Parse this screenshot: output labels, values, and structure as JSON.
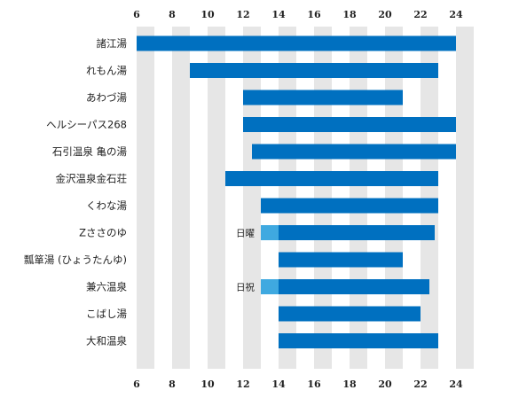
{
  "chart_data": {
    "type": "bar",
    "orientation": "horizontal-range",
    "title": "",
    "xlabel": "",
    "ylabel": "",
    "xlim": [
      6,
      24
    ],
    "xticks": [
      6,
      8,
      10,
      12,
      14,
      16,
      18,
      20,
      22,
      24
    ],
    "tick_labels": [
      "6",
      "8",
      "10",
      "12",
      "14",
      "16",
      "18",
      "20",
      "22",
      "24"
    ],
    "grid": "alternating vertical bands",
    "axis_labels_position": "top and bottom",
    "colors": {
      "main": "#0070c0",
      "extension": "#3fa9e0",
      "band": "#e6e6e6"
    },
    "categories": [
      "諸江湯",
      "れもん湯",
      "あわづ湯",
      "ヘルシーパス268",
      "石引温泉 亀の湯",
      "金沢温泉金石荘",
      "くわな湯",
      "Zささのゆ",
      "瓢箪湯 (ひょうたんゆ)",
      "兼六温泉",
      "こばし湯",
      "大和温泉"
    ],
    "series": [
      {
        "values": [
          [
            6,
            24
          ],
          [
            9,
            23
          ],
          [
            12,
            21
          ],
          [
            12,
            24
          ],
          [
            12.5,
            24
          ],
          [
            11,
            23
          ],
          [
            13,
            23
          ],
          [
            14,
            22.8
          ],
          [
            14,
            21
          ],
          [
            14,
            22.5
          ],
          [
            14,
            22
          ],
          [
            14,
            23
          ]
        ]
      }
    ],
    "extensions": [
      {
        "category": "Zささのゆ",
        "range": [
          13,
          14
        ],
        "label": "日曜"
      },
      {
        "category": "兼六温泉",
        "range": [
          13,
          14
        ],
        "label": "日祝"
      }
    ]
  }
}
